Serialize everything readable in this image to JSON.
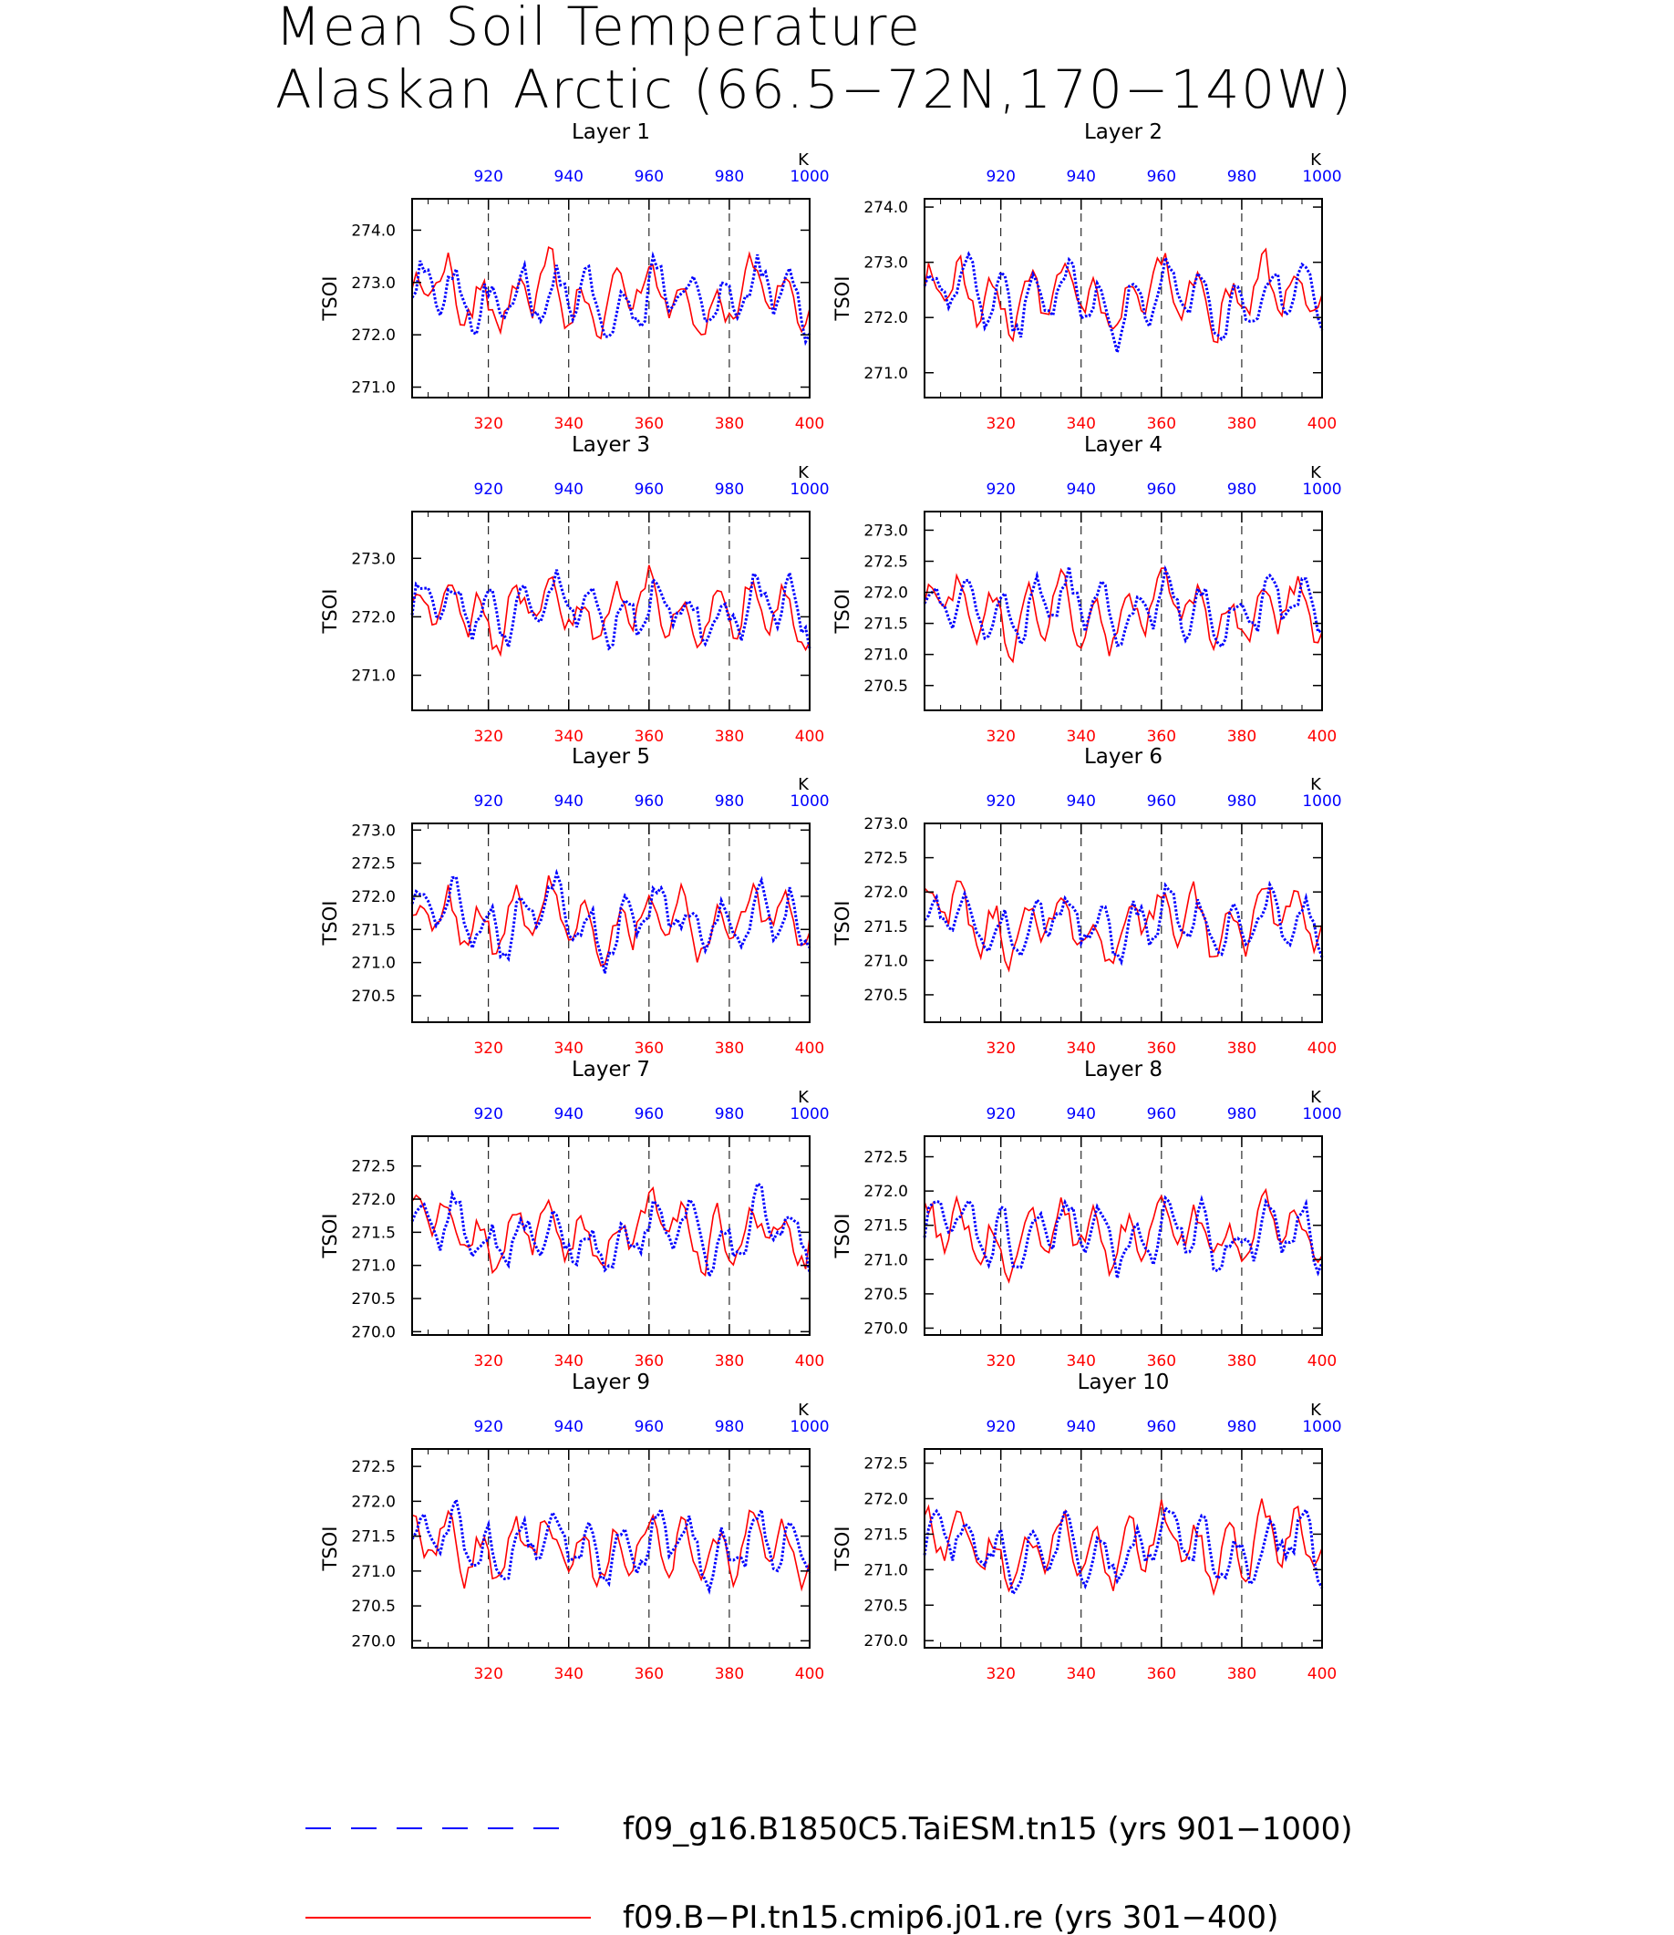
{
  "title_line1": "Mean Soil Temperature",
  "title_line2": "Alaskan Arctic (66.5−72N,170−140W)",
  "legend": [
    {
      "label": "f09_g16.B1850C5.TaiESM.tn15 (yrs 901−1000)",
      "color": "#0000ff",
      "style": "dashed"
    },
    {
      "label": "f09.B−PI.tn15.cmip6.j01.re (yrs 301−400)",
      "color": "#ff0000",
      "style": "solid"
    }
  ],
  "chart_data": [
    {
      "type": "line",
      "title": "Layer 1",
      "ylabel": "TSOI",
      "top_unit": "K",
      "xlim": [
        301,
        400
      ],
      "top_xlim": [
        901,
        1000
      ],
      "ylim": [
        270.8,
        274.6
      ],
      "yticks": [
        "271.0",
        "272.0",
        "273.0",
        "274.0"
      ],
      "xticks": [
        "320",
        "340",
        "360",
        "380",
        "400"
      ],
      "top_xticks": [
        "920",
        "940",
        "960",
        "980",
        "1000"
      ],
      "vlines": [
        320,
        340,
        360,
        380
      ],
      "seed": 11
    },
    {
      "type": "line",
      "title": "Layer 2",
      "ylabel": "TSOI",
      "top_unit": "K",
      "xlim": [
        301,
        400
      ],
      "top_xlim": [
        901,
        1000
      ],
      "ylim": [
        270.55,
        274.15
      ],
      "yticks": [
        "271.0",
        "272.0",
        "273.0",
        "274.0"
      ],
      "xticks": [
        "320",
        "340",
        "360",
        "380",
        "400"
      ],
      "top_xticks": [
        "920",
        "940",
        "960",
        "980",
        "1000"
      ],
      "vlines": [
        320,
        340,
        360,
        380
      ],
      "seed": 12
    },
    {
      "type": "line",
      "title": "Layer 3",
      "ylabel": "TSOI",
      "top_unit": "K",
      "xlim": [
        301,
        400
      ],
      "top_xlim": [
        901,
        1000
      ],
      "ylim": [
        270.4,
        273.8
      ],
      "yticks": [
        "271.0",
        "272.0",
        "273.0"
      ],
      "xticks": [
        "320",
        "340",
        "360",
        "380",
        "400"
      ],
      "top_xticks": [
        "920",
        "940",
        "960",
        "980",
        "1000"
      ],
      "vlines": [
        320,
        340,
        360,
        380
      ],
      "seed": 13
    },
    {
      "type": "line",
      "title": "Layer 4",
      "ylabel": "TSOI",
      "top_unit": "K",
      "xlim": [
        301,
        400
      ],
      "top_xlim": [
        901,
        1000
      ],
      "ylim": [
        270.1,
        273.3
      ],
      "yticks": [
        "270.5",
        "271.0",
        "271.5",
        "272.0",
        "272.5",
        "273.0"
      ],
      "xticks": [
        "320",
        "340",
        "360",
        "380",
        "400"
      ],
      "top_xticks": [
        "920",
        "940",
        "960",
        "980",
        "1000"
      ],
      "vlines": [
        320,
        340,
        360,
        380
      ],
      "seed": 14
    },
    {
      "type": "line",
      "title": "Layer 5",
      "ylabel": "TSOI",
      "top_unit": "K",
      "xlim": [
        301,
        400
      ],
      "top_xlim": [
        901,
        1000
      ],
      "ylim": [
        270.1,
        273.1
      ],
      "yticks": [
        "270.5",
        "271.0",
        "271.5",
        "272.0",
        "272.5",
        "273.0"
      ],
      "xticks": [
        "320",
        "340",
        "360",
        "380",
        "400"
      ],
      "top_xticks": [
        "920",
        "940",
        "960",
        "980",
        "1000"
      ],
      "vlines": [
        320,
        340,
        360,
        380
      ],
      "seed": 15
    },
    {
      "type": "line",
      "title": "Layer 6",
      "ylabel": "TSOI",
      "top_unit": "K",
      "xlim": [
        301,
        400
      ],
      "top_xlim": [
        901,
        1000
      ],
      "ylim": [
        270.1,
        273.0
      ],
      "yticks": [
        "270.5",
        "271.0",
        "271.5",
        "272.0",
        "272.5",
        "273.0"
      ],
      "xticks": [
        "320",
        "340",
        "360",
        "380",
        "400"
      ],
      "top_xticks": [
        "920",
        "940",
        "960",
        "980",
        "1000"
      ],
      "vlines": [
        320,
        340,
        360,
        380
      ],
      "seed": 16
    },
    {
      "type": "line",
      "title": "Layer 7",
      "ylabel": "TSOI",
      "top_unit": "K",
      "xlim": [
        301,
        400
      ],
      "top_xlim": [
        901,
        1000
      ],
      "ylim": [
        269.95,
        272.95
      ],
      "yticks": [
        "270.0",
        "270.5",
        "271.0",
        "271.5",
        "272.0",
        "272.5"
      ],
      "xticks": [
        "320",
        "340",
        "360",
        "380",
        "400"
      ],
      "top_xticks": [
        "920",
        "940",
        "960",
        "980",
        "1000"
      ],
      "vlines": [
        320,
        340,
        360,
        380
      ],
      "seed": 17
    },
    {
      "type": "line",
      "title": "Layer 8",
      "ylabel": "TSOI",
      "top_unit": "K",
      "xlim": [
        301,
        400
      ],
      "top_xlim": [
        901,
        1000
      ],
      "ylim": [
        269.9,
        272.8
      ],
      "yticks": [
        "270.0",
        "270.5",
        "271.0",
        "271.5",
        "272.0",
        "272.5"
      ],
      "xticks": [
        "320",
        "340",
        "360",
        "380",
        "400"
      ],
      "top_xticks": [
        "920",
        "940",
        "960",
        "980",
        "1000"
      ],
      "vlines": [
        320,
        340,
        360,
        380
      ],
      "seed": 18
    },
    {
      "type": "line",
      "title": "Layer 9",
      "ylabel": "TSOI",
      "top_unit": "K",
      "xlim": [
        301,
        400
      ],
      "top_xlim": [
        901,
        1000
      ],
      "ylim": [
        269.9,
        272.75
      ],
      "yticks": [
        "270.0",
        "270.5",
        "271.0",
        "271.5",
        "272.0",
        "272.5"
      ],
      "xticks": [
        "320",
        "340",
        "360",
        "380",
        "400"
      ],
      "top_xticks": [
        "920",
        "940",
        "960",
        "980",
        "1000"
      ],
      "vlines": [
        320,
        340,
        360,
        380
      ],
      "seed": 19
    },
    {
      "type": "line",
      "title": "Layer 10",
      "ylabel": "TSOI",
      "top_unit": "K",
      "xlim": [
        301,
        400
      ],
      "top_xlim": [
        901,
        1000
      ],
      "ylim": [
        269.9,
        272.7
      ],
      "yticks": [
        "270.0",
        "270.5",
        "271.0",
        "271.5",
        "272.0",
        "272.5"
      ],
      "xticks": [
        "320",
        "340",
        "360",
        "380",
        "400"
      ],
      "top_xticks": [
        "920",
        "940",
        "960",
        "980",
        "1000"
      ],
      "vlines": [
        320,
        340,
        360,
        380
      ],
      "seed": 20
    }
  ]
}
